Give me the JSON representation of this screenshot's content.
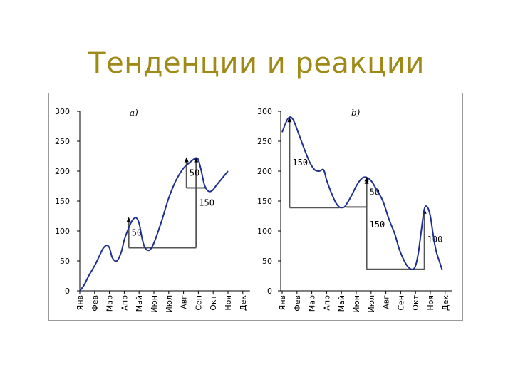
{
  "slide": {
    "title": "Тенденции и реакции"
  },
  "colors": {
    "title": "#A08A17",
    "line": "#1F2F8F",
    "annotation": "#555555",
    "axis": "#000000"
  },
  "chart_data": [
    {
      "type": "line",
      "panel_label": "a)",
      "categories": [
        "Янв",
        "Фев",
        "Мар",
        "Апр",
        "Май",
        "Июн",
        "Июл",
        "Авг",
        "Сен",
        "Окт",
        "Ноя",
        "Дек"
      ],
      "ylim": [
        0,
        300
      ],
      "yticks": [
        0,
        50,
        100,
        150,
        200,
        250,
        300
      ],
      "grid": false,
      "series": [
        {
          "x": [
            0,
            0.3,
            0.6,
            1,
            1.3,
            1.55,
            1.8,
            2,
            2.2,
            2.5,
            2.8,
            3,
            3.3,
            3.55,
            3.8,
            4,
            4.2,
            4.4,
            4.7,
            5,
            5.5,
            6,
            6.5,
            7,
            7.4,
            7.7,
            7.85,
            8,
            8.2,
            8.4,
            8.6,
            8.8,
            9,
            9.2,
            9.5,
            9.8,
            10
          ],
          "y": [
            0,
            10,
            25,
            42,
            57,
            70,
            76,
            72,
            55,
            50,
            65,
            85,
            105,
            118,
            122,
            113,
            88,
            72,
            68,
            80,
            115,
            155,
            185,
            205,
            214,
            220,
            222,
            219,
            200,
            178,
            168,
            166,
            169,
            176,
            185,
            194,
            200
          ]
        }
      ],
      "annotations": [
        {
          "label": "50",
          "x_from": 4.2,
          "x_to": 3.3,
          "y_from": 72,
          "y_to": 122
        },
        {
          "label": "150",
          "x_from": 4.2,
          "x_to": 7.85,
          "y_from": 72,
          "y_to": 222
        },
        {
          "label": "50",
          "x_from": 8.6,
          "x_to": 7.2,
          "y_from": 172,
          "y_to": 222
        }
      ]
    },
    {
      "type": "line",
      "panel_label": "b)",
      "categories": [
        "Янв",
        "Фев",
        "Мар",
        "Апр",
        "Май",
        "Июн",
        "Июл",
        "Авг",
        "Сен",
        "Окт",
        "Ноя",
        "Дек"
      ],
      "ylim": [
        0,
        300
      ],
      "yticks": [
        0,
        50,
        100,
        150,
        200,
        250,
        300
      ],
      "grid": false,
      "series": [
        {
          "x": [
            0,
            0.2,
            0.4,
            0.6,
            0.8,
            1,
            1.3,
            1.6,
            1.9,
            2.2,
            2.5,
            2.8,
            3,
            3.3,
            3.6,
            3.85,
            4,
            4.2,
            4.4,
            4.7,
            5,
            5.3,
            5.6,
            6,
            6.4,
            6.8,
            7.2,
            7.6,
            7.9,
            8.2,
            8.5,
            8.8,
            9,
            9.2,
            9.4,
            9.6,
            9.8,
            10,
            10.2,
            10.4,
            10.6,
            10.8
          ],
          "y": [
            265,
            278,
            288,
            290,
            283,
            270,
            250,
            230,
            213,
            202,
            200,
            202,
            185,
            165,
            148,
            140,
            139,
            140,
            147,
            160,
            175,
            186,
            190,
            184,
            168,
            150,
            120,
            95,
            70,
            52,
            40,
            36,
            42,
            65,
            102,
            137,
            140,
            125,
            92,
            66,
            50,
            35
          ]
        }
      ],
      "annotations": [
        {
          "label": "150",
          "x_from": 3.85,
          "x_to": 0.5,
          "y_from": 139,
          "y_to": 289
        },
        {
          "label": "50",
          "x_from": 4.3,
          "x_to": 5.7,
          "y_from": 140,
          "y_to": 190
        },
        {
          "label": "150",
          "x_from": 8.6,
          "x_to": 5.7,
          "y_from": 36,
          "y_to": 186
        },
        {
          "label": "100",
          "x_from": 8.8,
          "x_to": 9.6,
          "y_from": 36,
          "y_to": 136
        }
      ]
    }
  ]
}
